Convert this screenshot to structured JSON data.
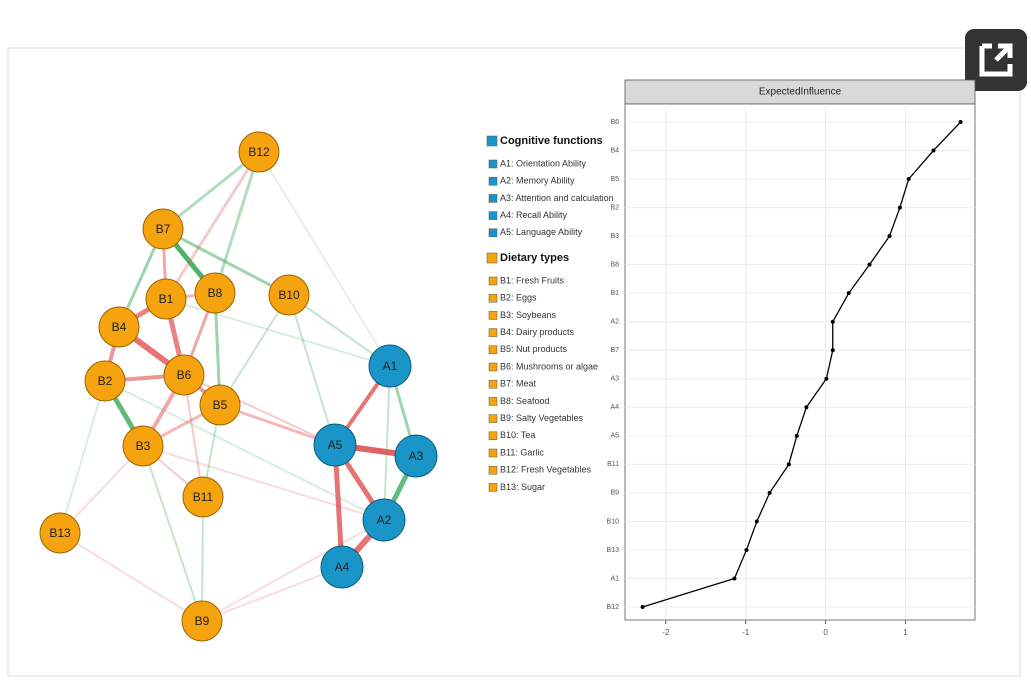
{
  "network": {
    "nodes": [
      "B12",
      "B7",
      "B1",
      "B8",
      "B10",
      "B4",
      "B2",
      "B6",
      "B5",
      "B3",
      "B11",
      "B13",
      "B9",
      "A1",
      "A5",
      "A3",
      "A2",
      "A4"
    ]
  },
  "legend": {
    "groups": [
      {
        "title": "Cognitive functions",
        "color": "#1a95c8",
        "items": [
          "A1: Orientation Ability",
          "A2: Memory Ability",
          "A3: Attention and calculation",
          "A4: Recall Ability",
          "A5: Language Ability"
        ]
      },
      {
        "title": "Dietary types",
        "color": "#f5a30f",
        "items": [
          "B1: Fresh Fruits",
          "B2: Eggs",
          "B3: Soybeans",
          "B4: Dairy products",
          "B5: Nut products",
          "B6: Mushrooms or algae",
          "B7: Meat",
          "B8: Seafood",
          "B9: Salty Vegetables",
          "B10: Tea",
          "B11: Garlic",
          "B12: Fresh Vegetables",
          "B13: Sugar"
        ]
      }
    ]
  },
  "chart_data": {
    "type": "line",
    "strip": "ExpectedInfluence",
    "color": "#000000",
    "grid": true,
    "categories": [
      "B6",
      "B4",
      "B5",
      "B2",
      "B3",
      "B8",
      "B1",
      "A2",
      "B7",
      "A3",
      "A4",
      "A5",
      "B11",
      "B9",
      "B10",
      "B13",
      "A1",
      "B12"
    ],
    "values": [
      1.69,
      1.35,
      1.04,
      0.93,
      0.8,
      0.55,
      0.29,
      0.09,
      0.09,
      0.01,
      -0.24,
      -0.36,
      -0.46,
      -0.7,
      -0.86,
      -0.99,
      -1.14,
      -2.29
    ],
    "xlim": [
      -2.51,
      1.87
    ],
    "xticks": [
      -2,
      -1,
      0,
      1
    ]
  }
}
